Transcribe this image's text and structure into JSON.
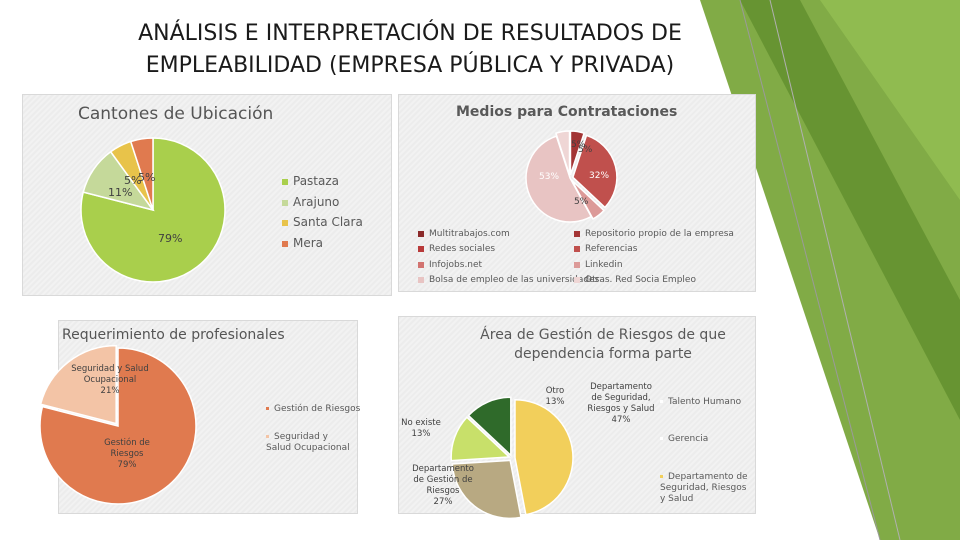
{
  "slide": {
    "title_line1": "ANÁLISIS E INTERPRETACIÓN DE RESULTADOS DE",
    "title_line2": "EMPLEABILIDAD (EMPRESA PÚBLICA Y PRIVADA)"
  },
  "colors": {
    "green_band": "#7aa63c",
    "green_dark": "#5d8a2a"
  },
  "chart_data": [
    {
      "type": "pie",
      "title": "Cantones de Ubicación",
      "categories": [
        "Pastaza",
        "Arajuno",
        "Santa Clara",
        "Mera"
      ],
      "values": [
        79,
        11,
        5,
        5
      ],
      "data_labels": [
        "79%",
        "11%",
        "5%",
        "5%"
      ],
      "colors": [
        "#a9cf4c",
        "#c5d99a",
        "#e8c34a",
        "#e07a4f"
      ],
      "legend": "right"
    },
    {
      "type": "pie",
      "title": "Medios para Contrataciones",
      "categories": [
        "Multitrabajos.com",
        "Repositorio propio de la empresa",
        "Redes sociales",
        "Referencias",
        "Infojobs.net",
        "Linkedin",
        "Bolsa de empleo de las universidades",
        "Otras. Red Socia Empleo"
      ],
      "values": [
        0,
        5,
        0,
        32,
        0,
        5,
        53,
        5
      ],
      "data_labels": [
        "",
        "5%",
        "",
        "32%",
        "",
        "5%",
        "53%",
        "5%"
      ],
      "colors": [
        "#8b2a2a",
        "#a33535",
        "#b83a3a",
        "#c0504d",
        "#d27370",
        "#dc9a98",
        "#e8c4c3",
        "#efd6d5"
      ],
      "legend": "bottom"
    },
    {
      "type": "pie",
      "title": "Requerimiento de profesionales",
      "categories": [
        "Gestión de Riesgos",
        "Seguridad y Salud Ocupacional"
      ],
      "values": [
        79,
        21
      ],
      "data_labels": [
        "Gestión de Riesgos 79%",
        "Seguridad y Salud Ocupacional 21%"
      ],
      "colors": [
        "#e07a4f",
        "#f3c4a6"
      ],
      "legend": "right"
    },
    {
      "type": "pie",
      "title": "Área de Gestión de Riesgos de que dependencia forma parte",
      "categories": [
        "Talento Humano",
        "Gerencia",
        "Departamento de Seguridad, Riesgos y Salud",
        "Departamento de Gestión de Riesgos",
        "No existe",
        "Otro"
      ],
      "values": [
        0,
        0,
        47,
        27,
        13,
        13
      ],
      "data_labels": [
        "",
        "",
        "Departamento de Seguridad, Riesgos y Salud 47%",
        "Departamento de Gestión de Riesgos 27%",
        "No existe 13%",
        "Otro 13%"
      ],
      "colors": [
        "#ffffff",
        "#ffffff",
        "#f2cf5b",
        "#b8a982",
        "#c8e06a",
        "#2f6a2a"
      ],
      "legend": "right"
    }
  ],
  "legend_labels": {
    "c1": [
      "Pastaza",
      "Arajuno",
      "Santa Clara",
      "Mera"
    ],
    "c2": [
      "Multitrabajos.com",
      "Repositorio propio de la empresa",
      "Redes sociales",
      "Referencias",
      "Infojobs.net",
      "Linkedin",
      "Bolsa de empleo de las universidades",
      "Otras. Red Socia Empleo"
    ],
    "c3": [
      "Gestión de Riesgos",
      "Seguridad y Salud Ocupacional"
    ],
    "c4": [
      "Talento Humano",
      "Gerencia",
      "Departamento de Seguridad, Riesgos y Salud"
    ]
  },
  "pie_labels": {
    "c1": {
      "a": "79%",
      "b": "11%",
      "c": "5%",
      "d": "5%"
    },
    "c2": {
      "a": "5%",
      "b": "32%",
      "c": "5%",
      "d": "53%",
      "e": "5%"
    },
    "c3": {
      "a_name": "Seguridad y Salud Ocupacional",
      "a_pct": "21%",
      "b_name": "Gestión de Riesgos",
      "b_pct": "79%"
    },
    "c4": {
      "a_name": "Departamento de Seguridad, Riesgos y Salud",
      "a_pct": "47%",
      "b_name": "Departamento de Gestión de Riesgos",
      "b_pct": "27%",
      "c_name": "No existe",
      "c_pct": "13%",
      "d_name": "Otro",
      "d_pct": "13%"
    }
  }
}
